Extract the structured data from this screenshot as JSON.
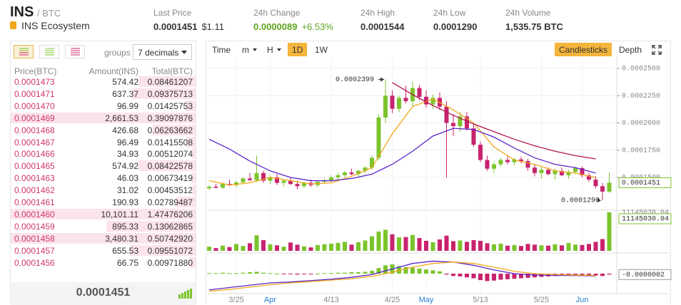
{
  "header": {
    "symbol": "INS",
    "pair": "/ BTC",
    "name": "INS Ecosystem",
    "stats": [
      {
        "label": "Last Price",
        "value": "0.0001451",
        "extra": "$1.11"
      },
      {
        "label": "24h Change",
        "value": "0.0000089",
        "extra": "+6.53%",
        "color": "#5ea51e"
      },
      {
        "label": "24h High",
        "value": "0.0001544"
      },
      {
        "label": "24h Low",
        "value": "0.0001290"
      },
      {
        "label": "24h Volume",
        "value": "1,535.75 BTC"
      }
    ]
  },
  "orderbook": {
    "groups_label": "groups",
    "decimals": "7 decimals",
    "columns": [
      "Price(BTC)",
      "Amount(INS)",
      "Total(BTC)"
    ],
    "rows": [
      [
        "0.0001473",
        "574.42",
        "0.08461207"
      ],
      [
        "0.0001471",
        "637.37",
        "0.09375713"
      ],
      [
        "0.0001470",
        "96.99",
        "0.01425753"
      ],
      [
        "0.0001469",
        "2,661.53",
        "0.39097876"
      ],
      [
        "0.0001468",
        "426.68",
        "0.06263662"
      ],
      [
        "0.0001467",
        "96.49",
        "0.01415508"
      ],
      [
        "0.0001466",
        "34.93",
        "0.00512074"
      ],
      [
        "0.0001465",
        "574.92",
        "0.08422578"
      ],
      [
        "0.0001463",
        "46.03",
        "0.00673419"
      ],
      [
        "0.0001462",
        "31.02",
        "0.00453512"
      ],
      [
        "0.0001461",
        "190.93",
        "0.02789487"
      ],
      [
        "0.0001460",
        "10,101.11",
        "1.47476206"
      ],
      [
        "0.0001459",
        "895.33",
        "0.13062865"
      ],
      [
        "0.0001458",
        "3,480.31",
        "0.50742920"
      ],
      [
        "0.0001457",
        "655.53",
        "0.09551072"
      ],
      [
        "0.0001456",
        "66.75",
        "0.00971880"
      ]
    ],
    "last_price": "0.0001451"
  },
  "toolbar": {
    "intervals": [
      {
        "label": "Time"
      },
      {
        "label": "m",
        "dropdown": true
      },
      {
        "label": "H",
        "dropdown": true
      },
      {
        "label": "1D",
        "active": true
      },
      {
        "label": "1W"
      }
    ],
    "views": [
      {
        "label": "Candlesticks",
        "active": true
      },
      {
        "label": "Depth"
      }
    ]
  },
  "chart_data": {
    "type": "candlestick",
    "up_color": "#7cc42c",
    "down_color": "#c8236e",
    "categories": [
      null,
      null,
      null,
      null,
      "3/25",
      null,
      null,
      null,
      null,
      "Apr",
      null,
      null,
      null,
      null,
      null,
      null,
      null,
      null,
      "4/13",
      null,
      null,
      null,
      null,
      null,
      null,
      null,
      null,
      "4/25",
      null,
      null,
      null,
      null,
      "May",
      null,
      null,
      null,
      null,
      null,
      null,
      null,
      "5/13",
      null,
      null,
      null,
      null,
      null,
      null,
      null,
      null,
      "5/25",
      null,
      null,
      null,
      null,
      null,
      "Jun",
      null,
      null,
      null,
      null
    ],
    "candles": {
      "open": [
        0.00014,
        0.0001415,
        0.0001405,
        0.000144,
        0.000143,
        0.0001455,
        0.000149,
        0.0001475,
        0.000154,
        0.000147,
        0.00015,
        0.000145,
        0.000147,
        0.000144,
        0.000142,
        0.000145,
        0.000143,
        0.000146,
        0.000147,
        0.00015,
        0.000152,
        0.0001545,
        0.000153,
        0.000156,
        0.000159,
        0.000168,
        0.000205,
        0.000225,
        0.000213,
        0.000223,
        0.00022,
        0.000232,
        0.000224,
        0.000217,
        0.000223,
        0.000215,
        0.0002,
        0.000197,
        0.000206,
        0.000195,
        0.00018,
        0.000166,
        0.000158,
        0.000162,
        0.000166,
        0.000164,
        0.0001665,
        0.000165,
        0.000159,
        0.000154,
        0.000157,
        0.000153,
        0.000156,
        0.000152,
        0.000155,
        0.0001585,
        0.000152,
        0.000148,
        0.000142,
        0.000137
      ],
      "high": [
        0.0001425,
        0.000144,
        0.000145,
        0.000148,
        0.000147,
        0.00015,
        0.000154,
        0.00017,
        0.000156,
        0.000152,
        0.000153,
        0.000148,
        0.00015,
        0.000147,
        0.000146,
        0.000148,
        0.000147,
        0.000149,
        0.000152,
        0.000154,
        0.000156,
        0.000158,
        0.000157,
        0.00016,
        0.00017,
        0.000208,
        0.0002399,
        0.00023,
        0.000225,
        0.000234,
        0.000238,
        0.000235,
        0.00023,
        0.000226,
        0.000228,
        0.00022,
        0.000208,
        0.00021,
        0.00021,
        0.000199,
        0.000183,
        0.00017,
        0.000164,
        0.000168,
        0.00017,
        0.000168,
        0.000169,
        0.000167,
        0.000162,
        0.00016,
        0.000159,
        0.000158,
        0.000159,
        0.000157,
        0.00016,
        0.00016,
        0.000154,
        0.000151,
        0.000145,
        0.0001544
      ],
      "low": [
        0.0001385,
        0.00014,
        0.0001395,
        0.000142,
        0.000141,
        0.000144,
        0.0001465,
        0.000146,
        0.000145,
        0.000144,
        0.000143,
        0.000142,
        0.000143,
        0.000139,
        0.00014,
        0.0001415,
        0.000141,
        0.000144,
        0.000145,
        0.000148,
        0.00015,
        0.000152,
        0.000151,
        0.000154,
        0.000157,
        0.000166,
        0.0002,
        0.000209,
        0.00021,
        0.000218,
        0.000215,
        0.000221,
        0.000214,
        0.000213,
        0.000212,
        0.00015,
        0.000188,
        0.000192,
        0.000193,
        0.000178,
        0.000164,
        0.000156,
        0.000154,
        0.00016,
        0.000162,
        0.000161,
        0.000163,
        0.000156,
        0.000151,
        0.000149,
        0.000152,
        0.000148,
        0.000151,
        0.000149,
        0.000153,
        0.00015,
        0.000146,
        0.00014,
        0.000129,
        0.000136
      ],
      "close": [
        0.0001415,
        0.0001405,
        0.000144,
        0.000143,
        0.0001455,
        0.000149,
        0.0001475,
        0.000154,
        0.000147,
        0.00015,
        0.000145,
        0.000147,
        0.000144,
        0.000142,
        0.000145,
        0.000143,
        0.000146,
        0.000147,
        0.00015,
        0.000152,
        0.0001545,
        0.000153,
        0.000156,
        0.000159,
        0.000168,
        0.000205,
        0.000225,
        0.000213,
        0.000223,
        0.00022,
        0.000232,
        0.000224,
        0.000217,
        0.000223,
        0.000215,
        0.0002,
        0.000197,
        0.000206,
        0.000195,
        0.00018,
        0.000166,
        0.000158,
        0.000162,
        0.000166,
        0.000164,
        0.0001665,
        0.000165,
        0.000159,
        0.000154,
        0.000157,
        0.000153,
        0.000156,
        0.000152,
        0.000155,
        0.0001585,
        0.000152,
        0.000148,
        0.000142,
        0.000137,
        0.0001451
      ]
    },
    "moving_averages": [
      {
        "color": "#f2a71b",
        "values": [
          0.000147,
          0.000143,
          0.000145,
          0.00015,
          0.000147,
          0.000144,
          0.000145,
          0.000151,
          0.000159,
          0.00019,
          0.000215,
          0.000222,
          0.000212,
          0.0002,
          0.000178,
          0.000166,
          0.000162,
          0.000156,
          0.000154,
          0.00015
        ]
      },
      {
        "color": "#5a26c9",
        "values": [
          0.000185,
          0.000176,
          0.000165,
          0.000156,
          0.00015,
          0.000147,
          0.000147,
          0.000149,
          0.000153,
          0.000162,
          0.000174,
          0.000188,
          0.000195,
          0.000194,
          0.000187,
          0.000177,
          0.000168,
          0.000162,
          0.000159,
          0.000154
        ]
      },
      {
        "color": "#b3124f",
        "values": [
          null,
          null,
          null,
          null,
          null,
          null,
          null,
          null,
          null,
          0.000237,
          0.000226,
          0.000216,
          0.000207,
          0.000199,
          0.000192,
          0.000185,
          0.000179,
          0.000174,
          0.00017,
          0.000167
        ]
      }
    ],
    "ylim": [
      0.0001212,
      0.0002605
    ],
    "yticks": [
      {
        "value": 0.00015,
        "label": "0.0001500"
      },
      {
        "value": 0.000175,
        "label": "0.0001750"
      },
      {
        "value": 0.0002,
        "label": "0.0002000"
      },
      {
        "value": 0.000225,
        "label": "0.0002250"
      },
      {
        "value": 0.00025,
        "label": "0.0002500"
      }
    ],
    "high_annotation": {
      "value": 0.0002399,
      "label": "0.0002399"
    },
    "low_annotation": {
      "value": 0.000129,
      "label": "0.0001290"
    },
    "volume": {
      "values": [
        1200000,
        800000,
        1500000,
        1100000,
        2000000,
        1400000,
        2200000,
        4500000,
        3100000,
        1900000,
        1600000,
        1200000,
        2400000,
        1800000,
        1300000,
        1000000,
        1700000,
        1900000,
        2100000,
        2300000,
        2600000,
        1800000,
        2500000,
        3000000,
        4200000,
        5600000,
        6100000,
        4800000,
        3900000,
        4000000,
        4600000,
        3700000,
        2900000,
        2500000,
        3300000,
        4400000,
        2800000,
        3000000,
        2600000,
        3100000,
        2900000,
        2200000,
        1900000,
        2100000,
        1500000,
        1700000,
        1400000,
        2000000,
        1800000,
        1600000,
        1500000,
        1900000,
        1600000,
        2300000,
        1800000,
        1700000,
        2000000,
        2600000,
        3400000,
        11145030.04
      ],
      "ylim": [
        0,
        11145030.04
      ]
    },
    "macd": {
      "hist": [
        1e-07,
        1e-07,
        2e-07,
        1e-07,
        1e-07,
        2e-07,
        3e-07,
        4e-07,
        2e-07,
        1e-07,
        0,
        -1e-07,
        -1e-07,
        -2e-07,
        -1e-07,
        -1e-07,
        0,
        1e-07,
        1e-07,
        2e-07,
        2e-07,
        3e-07,
        3e-07,
        4e-07,
        6e-07,
        1.2e-06,
        1.8e-06,
        2e-06,
        1.6e-06,
        1.4e-06,
        1.3e-06,
        1.1e-06,
        9e-07,
        7e-07,
        5e-07,
        -2e-07,
        -5e-07,
        -6e-07,
        -8e-07,
        -1e-06,
        -1.4e-06,
        -1.6e-06,
        -1.5e-06,
        -1.3e-06,
        -1.2e-06,
        -1.1e-06,
        -1e-06,
        -9e-07,
        -8e-07,
        -7e-07,
        -6e-07,
        -5e-07,
        -4e-07,
        -4e-07,
        -3e-07,
        -3e-07,
        -4e-07,
        -4e-07,
        -5e-07,
        -2e-07
      ],
      "current": {
        "value": -2e-07,
        "label": "-0.0000002"
      },
      "lines": [
        {
          "color": "#5a26c9",
          "values": [
            -3.5e-06,
            -3e-06,
            -2.5e-06,
            -2e-06,
            -1.8e-06,
            -1.5e-06,
            -1.2e-06,
            -8e-07,
            -2e-07,
            1e-06,
            2.2e-06,
            2.7e-06,
            2.5e-06,
            1.8e-06,
            8e-07,
            0,
            -3e-07,
            -4e-07,
            -4e-07,
            -5e-07
          ]
        },
        {
          "color": "#f2a71b",
          "values": [
            -3.8e-06,
            -3.4e-06,
            -2.9e-06,
            -2.4e-06,
            -2e-06,
            -1.7e-06,
            -1.4e-06,
            -1.1e-06,
            -6e-07,
            3e-07,
            1.4e-06,
            2.2e-06,
            2.5e-06,
            2.2e-06,
            1.4e-06,
            5e-07,
            0,
            -2e-07,
            -3e-07,
            -4e-07
          ]
        }
      ],
      "ylim": [
        -4e-06,
        4e-06
      ]
    }
  }
}
